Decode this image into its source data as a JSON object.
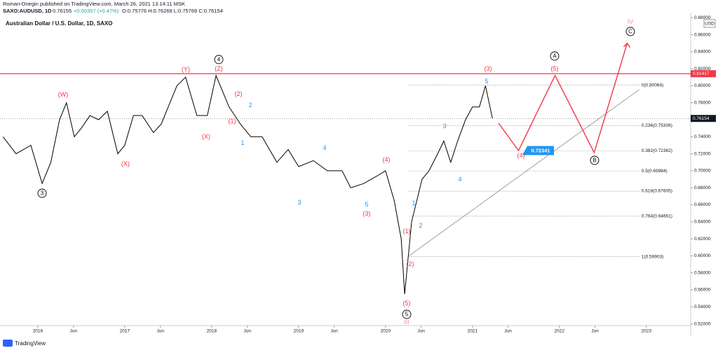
{
  "header": {
    "author_line": "Roman-Onegin published on TradingView.com, March 26, 2021 13:14:11 MSK",
    "symbol": "SAXO:AUDUSD, 1D",
    "price": "0.76155",
    "change": "+0.00357 (+0.47%)",
    "ohlc": "O:0.75776 H:0.76269 L:0.75769 C:0.76154",
    "currency": "USD"
  },
  "footer": {
    "brand": "TradingView"
  },
  "chart_data": {
    "type": "line",
    "title": "Australian Dollar / U.S. Dollar, 1D, SAXO",
    "color": "#000000",
    "x": [
      2015.6,
      2015.75,
      2015.92,
      2016.05,
      2016.15,
      2016.25,
      2016.33,
      2016.42,
      2016.5,
      2016.6,
      2016.7,
      2016.8,
      2016.92,
      2017.0,
      2017.1,
      2017.2,
      2017.33,
      2017.42,
      2017.5,
      2017.6,
      2017.7,
      2017.83,
      2017.95,
      2018.05,
      2018.2,
      2018.33,
      2018.45,
      2018.58,
      2018.75,
      2018.88,
      2019.0,
      2019.17,
      2019.33,
      2019.5,
      2019.6,
      2019.75,
      2019.92,
      2020.0,
      2020.1,
      2020.18,
      2020.22,
      2020.3,
      2020.42,
      2020.5,
      2020.6,
      2020.67,
      2020.75,
      2020.83,
      2020.92,
      2021.0,
      2021.08,
      2021.15,
      2021.23
    ],
    "values": [
      0.74,
      0.72,
      0.73,
      0.685,
      0.71,
      0.76,
      0.78,
      0.74,
      0.75,
      0.765,
      0.76,
      0.77,
      0.72,
      0.73,
      0.765,
      0.765,
      0.745,
      0.755,
      0.775,
      0.8,
      0.81,
      0.765,
      0.765,
      0.812,
      0.775,
      0.755,
      0.74,
      0.74,
      0.71,
      0.725,
      0.705,
      0.712,
      0.7,
      0.7,
      0.68,
      0.685,
      0.695,
      0.7,
      0.665,
      0.62,
      0.555,
      0.64,
      0.69,
      0.7,
      0.72,
      0.735,
      0.71,
      0.735,
      0.76,
      0.775,
      0.775,
      0.8,
      0.7615
    ],
    "xlim": [
      2015.565,
      2023.51
    ],
    "ylim": [
      0.518,
      0.886
    ],
    "xticks": [
      2016,
      {
        "value": 2016.41,
        "label": "Jun"
      },
      2017,
      {
        "value": 2017.41,
        "label": "Jun"
      },
      2018,
      {
        "value": 2018.41,
        "label": "Jun"
      },
      2019,
      {
        "value": 2019.41,
        "label": "Jun"
      },
      2020,
      {
        "value": 2020.41,
        "label": "Jun"
      },
      2021,
      {
        "value": 2021.41,
        "label": "Jun"
      },
      2022,
      {
        "value": 2022.41,
        "label": "Jun"
      },
      2023
    ],
    "yticks": [
      {
        "value": 0.52,
        "label": "0.52000"
      },
      {
        "value": 0.54,
        "label": "0.54000"
      },
      {
        "value": 0.56,
        "label": "0.56000"
      },
      {
        "value": 0.58,
        "label": "0.58000"
      },
      {
        "value": 0.6,
        "label": "0.60000"
      },
      {
        "value": 0.62,
        "label": "0.62000"
      },
      {
        "value": 0.64,
        "label": "0.64000"
      },
      {
        "value": 0.66,
        "label": "0.66000"
      },
      {
        "value": 0.68,
        "label": "0.68000"
      },
      {
        "value": 0.7,
        "label": "0.70000"
      },
      {
        "value": 0.72,
        "label": "0.72000"
      },
      {
        "value": 0.74,
        "label": "0.74000"
      },
      {
        "value": 0.76,
        "label": "0.76000"
      },
      {
        "value": 0.78,
        "label": "0.78000"
      },
      {
        "value": 0.8,
        "label": "0.80000"
      },
      {
        "value": 0.82,
        "label": "0.82000"
      },
      {
        "value": 0.84,
        "label": "0.84000"
      },
      {
        "value": 0.86,
        "label": "0.86000"
      },
      {
        "value": 0.88,
        "label": "0.88000"
      }
    ],
    "hline": {
      "value": 0.81417,
      "color": "#f23645"
    },
    "last_price": 0.76154,
    "fib": [
      {
        "value": 0.80064,
        "label": "0(0.80064)"
      },
      {
        "value": 0.75306,
        "label": "0.236(0.75306)"
      },
      {
        "value": 0.72362,
        "label": "0.382(0.72362)"
      },
      {
        "value": 0.69984,
        "label": "0.5(0.69984)"
      },
      {
        "value": 0.67605,
        "label": "0.618(0.67605)"
      },
      {
        "value": 0.64661,
        "label": "0.764(0.64661)"
      },
      {
        "value": 0.59903,
        "label": "1(0.59903)"
      }
    ],
    "fib_range": [
      2020.27,
      2022.92
    ],
    "projection": {
      "color": "#f23645",
      "x": [
        2021.3,
        2021.53,
        2021.95,
        2022.4,
        2022.78
      ],
      "values": [
        0.756,
        0.7238,
        0.8121,
        0.7214,
        0.85
      ]
    },
    "trendline": {
      "x": [
        2020.27,
        2022.92
      ],
      "values": [
        0.6,
        0.7956
      ]
    },
    "target": 0.72341,
    "annotations": [
      {
        "text": "(W)",
        "color": "#f23645"
      },
      {
        "text": "(X)",
        "color": "#f23645"
      },
      {
        "text": "(Y)",
        "color": "#f23645"
      },
      {
        "text": "(Z)",
        "color": "#f23645"
      },
      {
        "text": "4",
        "color": "#000000",
        "circled": true
      },
      {
        "text": "3",
        "color": "#000000",
        "circled": true
      },
      {
        "text": "(X)",
        "color": "#f23645"
      },
      {
        "text": "(2)",
        "color": "#f23645"
      },
      {
        "text": "(1)",
        "color": "#f23645"
      },
      {
        "text": "2",
        "color": "#2196f3"
      },
      {
        "text": "1",
        "color": "#2196f3"
      },
      {
        "text": "3",
        "color": "#2196f3"
      },
      {
        "text": "4",
        "color": "#2196f3"
      },
      {
        "text": "5",
        "color": "#2196f3"
      },
      {
        "text": "(3)",
        "color": "#f23645"
      },
      {
        "text": "(4)",
        "color": "#f23645"
      },
      {
        "text": "(1)",
        "color": "#f23645"
      },
      {
        "text": "(2)",
        "color": "#f23645"
      },
      {
        "text": "1",
        "color": "#2196f3"
      },
      {
        "text": "2",
        "color": "#2196f3"
      },
      {
        "text": "(5)",
        "color": "#f23645"
      },
      {
        "text": "5",
        "color": "#000000",
        "circled": true
      },
      {
        "text": "III",
        "color": "#f48fb1"
      },
      {
        "text": "3",
        "color": "#2196f3"
      },
      {
        "text": "4",
        "color": "#2196f3"
      },
      {
        "text": "5",
        "color": "#2196f3"
      },
      {
        "text": "(3)",
        "color": "#f23645"
      },
      {
        "text": "(4)",
        "color": "#f23645"
      },
      {
        "text": "(5)",
        "color": "#f23645"
      },
      {
        "text": "A",
        "color": "#000000",
        "circled": true
      },
      {
        "text": "B",
        "color": "#000000",
        "circled": true
      },
      {
        "text": "C",
        "color": "#000000",
        "circled": true
      },
      {
        "text": "IV",
        "color": "#f48fb1"
      }
    ]
  }
}
